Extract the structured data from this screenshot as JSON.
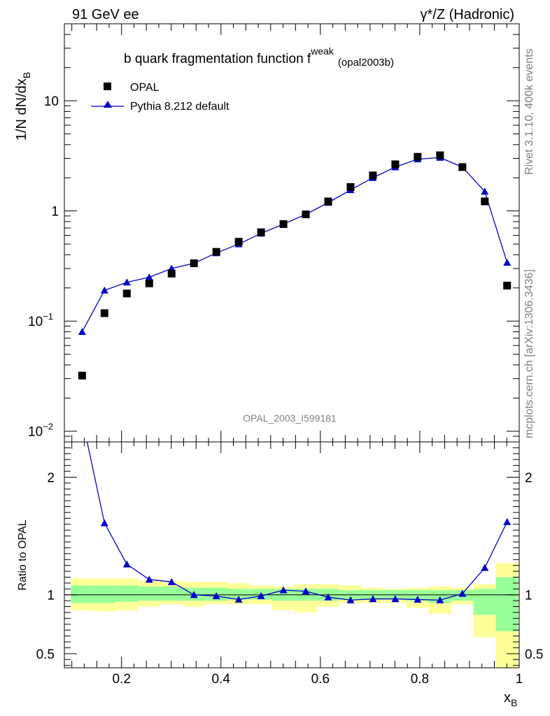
{
  "header": {
    "left": "91 GeV ee",
    "right": "γ*/Z (Hadronic)"
  },
  "side_labels": {
    "top": "Rivet 3.1.10,  400k events",
    "bottom": "mcplots.cern.ch [arXiv:1306.3436]"
  },
  "chart_data": [
    {
      "type": "scatter",
      "panel": "main",
      "title": "b quark fragmentation function f",
      "title_sup": "weak",
      "title_sub": "(opal2003b)",
      "watermark": "OPAL_2003_I599181",
      "ylabel": "1/N dN/dx",
      "ylabel_sub": "B",
      "yscale": "log",
      "xlim": [
        0.085,
        1.0
      ],
      "ylim": [
        0.008,
        50
      ],
      "yticks": [
        {
          "base": "10",
          "exp": "−2",
          "value": 0.01
        },
        {
          "base": "10",
          "exp": "−1",
          "value": 0.1
        },
        {
          "base": "1",
          "exp": "",
          "value": 1
        },
        {
          "base": "10",
          "exp": "",
          "value": 10
        }
      ],
      "legend": [
        "OPAL",
        "Pythia 8.212 default"
      ],
      "legend_position": "top-left",
      "x": [
        0.1207,
        0.1657,
        0.2107,
        0.2557,
        0.3007,
        0.3457,
        0.3907,
        0.4357,
        0.4807,
        0.5257,
        0.5707,
        0.6157,
        0.6607,
        0.7057,
        0.7507,
        0.7957,
        0.8407,
        0.8857,
        0.9307,
        0.9757
      ],
      "series": [
        {
          "name": "OPAL",
          "marker": "square",
          "color": "#000000",
          "values": [
            0.032,
            0.118,
            0.178,
            0.22,
            0.27,
            0.335,
            0.425,
            0.525,
            0.64,
            0.76,
            0.93,
            1.22,
            1.65,
            2.1,
            2.65,
            3.1,
            3.2,
            2.5,
            1.22,
            0.21
          ]
        },
        {
          "name": "Pythia 8.212 default",
          "marker": "triangle",
          "color": "#0000cc",
          "values": [
            0.08,
            0.19,
            0.225,
            0.25,
            0.3,
            0.335,
            0.415,
            0.5,
            0.625,
            0.76,
            0.93,
            1.19,
            1.55,
            2.0,
            2.5,
            2.95,
            3.05,
            2.5,
            1.5,
            0.34
          ]
        }
      ]
    },
    {
      "type": "line",
      "panel": "ratio",
      "ylabel": "Ratio to OPAL",
      "xlabel": "x",
      "xlabel_sub": "B",
      "xlim": [
        0.085,
        1.0
      ],
      "ylim": [
        0.38,
        2.3
      ],
      "xticks": [
        0.2,
        0.4,
        0.6,
        0.8,
        1
      ],
      "xtick_labels": [
        "0.2",
        "0.4",
        "0.6",
        "0.8",
        "1"
      ],
      "yticks": [
        0.5,
        1,
        2
      ],
      "ytick_labels": [
        "0.5",
        "1",
        "2"
      ],
      "colors": {
        "band_outer": "#ffff99",
        "band_inner": "#99ff99",
        "line": "#0000cc"
      },
      "bins": [
        {
          "x0": 0.098,
          "x1": 0.143,
          "inner": [
            0.93,
            1.08
          ],
          "outer": [
            0.87,
            1.14
          ]
        },
        {
          "x0": 0.143,
          "x1": 0.188,
          "inner": [
            0.93,
            1.08
          ],
          "outer": [
            0.86,
            1.14
          ]
        },
        {
          "x0": 0.188,
          "x1": 0.233,
          "inner": [
            0.94,
            1.08
          ],
          "outer": [
            0.87,
            1.14
          ]
        },
        {
          "x0": 0.233,
          "x1": 0.278,
          "inner": [
            0.95,
            1.07
          ],
          "outer": [
            0.9,
            1.12
          ]
        },
        {
          "x0": 0.278,
          "x1": 0.323,
          "inner": [
            0.95,
            1.07
          ],
          "outer": [
            0.92,
            1.12
          ]
        },
        {
          "x0": 0.323,
          "x1": 0.368,
          "inner": [
            0.95,
            1.06
          ],
          "outer": [
            0.9,
            1.11
          ]
        },
        {
          "x0": 0.368,
          "x1": 0.413,
          "inner": [
            0.95,
            1.06
          ],
          "outer": [
            0.92,
            1.11
          ]
        },
        {
          "x0": 0.413,
          "x1": 0.458,
          "inner": [
            0.96,
            1.05
          ],
          "outer": [
            0.92,
            1.1
          ]
        },
        {
          "x0": 0.458,
          "x1": 0.503,
          "inner": [
            0.96,
            1.05
          ],
          "outer": [
            0.92,
            1.08
          ]
        },
        {
          "x0": 0.503,
          "x1": 0.548,
          "inner": [
            0.95,
            1.05
          ],
          "outer": [
            0.87,
            1.07
          ]
        },
        {
          "x0": 0.548,
          "x1": 0.593,
          "inner": [
            0.95,
            1.05
          ],
          "outer": [
            0.85,
            1.09
          ]
        },
        {
          "x0": 0.593,
          "x1": 0.638,
          "inner": [
            0.95,
            1.05
          ],
          "outer": [
            0.9,
            1.09
          ]
        },
        {
          "x0": 0.638,
          "x1": 0.683,
          "inner": [
            0.96,
            1.04
          ],
          "outer": [
            0.93,
            1.08
          ]
        },
        {
          "x0": 0.683,
          "x1": 0.728,
          "inner": [
            0.96,
            1.04
          ],
          "outer": [
            0.93,
            1.06
          ]
        },
        {
          "x0": 0.728,
          "x1": 0.773,
          "inner": [
            0.96,
            1.04
          ],
          "outer": [
            0.93,
            1.05
          ]
        },
        {
          "x0": 0.773,
          "x1": 0.818,
          "inner": [
            0.95,
            1.04
          ],
          "outer": [
            0.89,
            1.06
          ]
        },
        {
          "x0": 0.818,
          "x1": 0.863,
          "inner": [
            0.93,
            1.04
          ],
          "outer": [
            0.84,
            1.07
          ]
        },
        {
          "x0": 0.863,
          "x1": 0.908,
          "inner": [
            0.95,
            1.04
          ],
          "outer": [
            0.92,
            1.06
          ]
        },
        {
          "x0": 0.908,
          "x1": 0.953,
          "inner": [
            0.83,
            1.05
          ],
          "outer": [
            0.64,
            1.09
          ]
        },
        {
          "x0": 0.953,
          "x1": 0.998,
          "inner": [
            0.69,
            1.15
          ],
          "outer": [
            0.35,
            1.27
          ]
        }
      ],
      "series": [
        {
          "name": "Pythia 8.212 default",
          "marker": "triangle",
          "color": "#0000cc",
          "x": [
            0.1207,
            0.1657,
            0.2107,
            0.2557,
            0.3007,
            0.3457,
            0.3907,
            0.4357,
            0.4807,
            0.5257,
            0.5707,
            0.6157,
            0.6607,
            0.7057,
            0.7507,
            0.7957,
            0.8407,
            0.8857,
            0.9307,
            0.9757
          ],
          "values": [
            2.5,
            1.61,
            1.26,
            1.13,
            1.11,
            1.0,
            0.99,
            0.96,
            0.99,
            1.04,
            1.03,
            0.98,
            0.955,
            0.965,
            0.965,
            0.96,
            0.955,
            1.01,
            1.23,
            1.62
          ]
        }
      ]
    }
  ]
}
